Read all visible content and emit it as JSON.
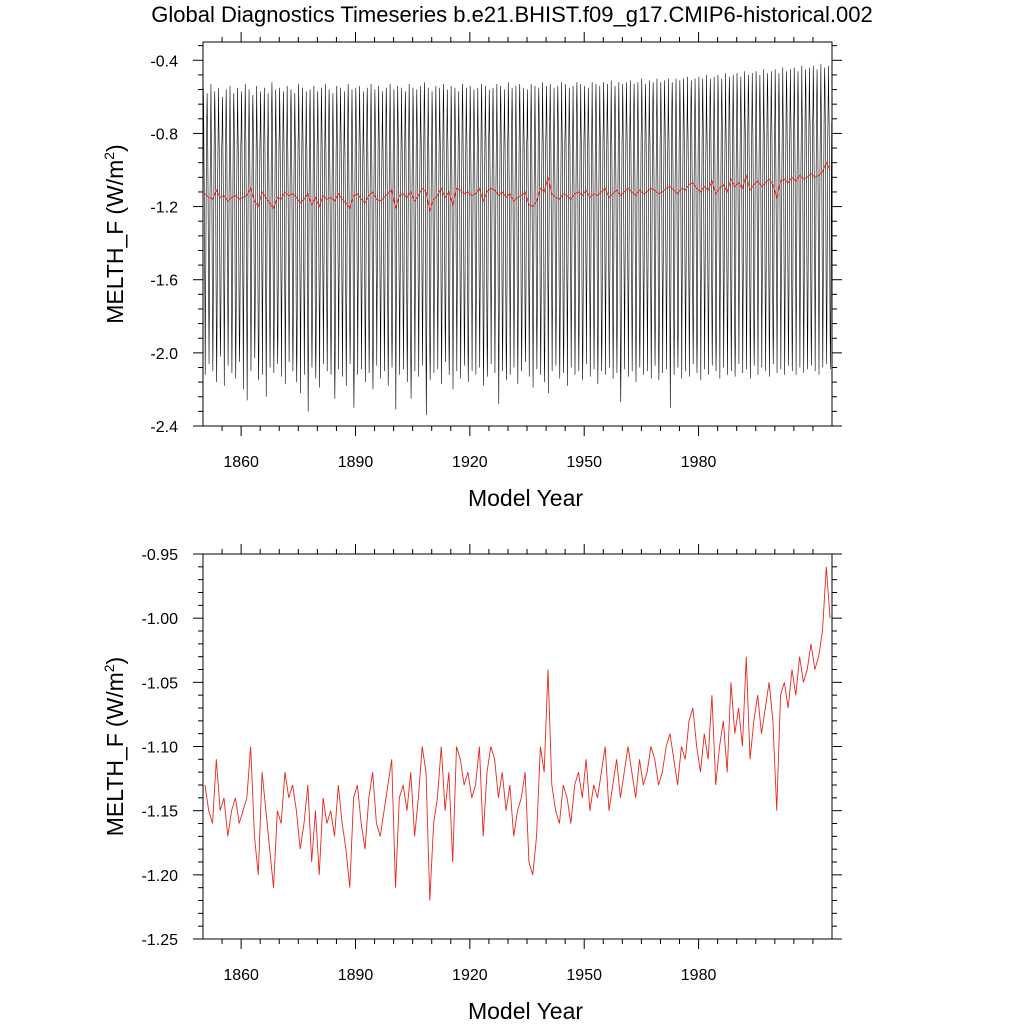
{
  "title": "Global Diagnostics Timeseries b.e21.BHIST.f09_g17.CMIP6-historical.002",
  "colors": {
    "monthly": "#000000",
    "annual": "#e8281e"
  },
  "chart_data": [
    {
      "type": "line",
      "name": "monthly-and-annual",
      "ylabel_main": "MELTH_F",
      "ylabel_units": "(W/m",
      "ylabel_sup": "2",
      "ylabel_close": ")",
      "xlabel": "Model Year",
      "xlim": [
        1850,
        2015
      ],
      "ylim": [
        -2.4,
        -0.3
      ],
      "xticks": [
        1860,
        1890,
        1920,
        1950,
        1980
      ],
      "yticks": [
        -0.4,
        -0.8,
        -1.2,
        -1.6,
        -2.0,
        -2.4
      ],
      "ytick_labels": [
        "-0.4",
        "-0.8",
        "-1.2",
        "-1.6",
        "-2.0",
        "-2.4"
      ],
      "series": [
        {
          "name": "monthly",
          "color": "#000000",
          "start_year": 1850,
          "years": 165,
          "summer_min": [
            -2.12,
            -2.06,
            -2.1,
            -2.16,
            -2.02,
            -2.18,
            -2.07,
            -2.11,
            -2.14,
            -2.05,
            -2.2,
            -2.26,
            -2.1,
            -2.03,
            -2.15,
            -2.12,
            -2.24,
            -2.08,
            -2.11,
            -2.06,
            -2.13,
            -2.17,
            -2.05,
            -2.1,
            -2.16,
            -2.22,
            -2.12,
            -2.32,
            -2.08,
            -2.14,
            -2.19,
            -2.06,
            -2.1,
            -2.12,
            -2.25,
            -2.09,
            -2.13,
            -2.18,
            -2.06,
            -2.3,
            -2.12,
            -2.09,
            -2.16,
            -2.11,
            -2.2,
            -2.07,
            -2.14,
            -2.1,
            -2.18,
            -2.08,
            -2.31,
            -2.12,
            -2.09,
            -2.16,
            -2.25,
            -2.1,
            -2.13,
            -2.07,
            -2.34,
            -2.15,
            -2.11,
            -2.09,
            -2.17,
            -2.05,
            -2.12,
            -2.2,
            -2.1,
            -2.14,
            -2.07,
            -2.16,
            -2.1,
            -2.12,
            -2.08,
            -2.18,
            -2.13,
            -2.06,
            -2.11,
            -2.28,
            -2.1,
            -2.15,
            -2.12,
            -2.08,
            -2.17,
            -2.1,
            -2.05,
            -2.13,
            -2.19,
            -2.09,
            -2.12,
            -2.16,
            -2.22,
            -2.1,
            -2.07,
            -2.14,
            -2.11,
            -2.18,
            -2.08,
            -2.12,
            -2.1,
            -2.15,
            -2.06,
            -2.13,
            -2.09,
            -2.17,
            -2.1,
            -2.12,
            -2.08,
            -2.14,
            -2.11,
            -2.27,
            -2.09,
            -2.13,
            -2.1,
            -2.16,
            -2.08,
            -2.12,
            -2.1,
            -2.14,
            -2.07,
            -2.15,
            -2.11,
            -2.09,
            -2.3,
            -2.12,
            -2.08,
            -2.14,
            -2.1,
            -2.13,
            -2.06,
            -2.11,
            -2.15,
            -2.09,
            -2.12,
            -2.07,
            -2.1,
            -2.14,
            -2.08,
            -2.12,
            -2.1,
            -2.13,
            -2.06,
            -2.11,
            -2.09,
            -2.14,
            -2.07,
            -2.12,
            -2.08,
            -2.1,
            -2.13,
            -2.06,
            -2.11,
            -2.09,
            -2.12,
            -2.07,
            -2.1,
            -2.12,
            -2.08,
            -2.11,
            -2.09,
            -2.07,
            -2.1,
            -2.12,
            -2.08,
            -2.06,
            -2.09
          ],
          "winter_max": [
            -0.55,
            -0.58,
            -0.53,
            -0.57,
            -0.55,
            -0.6,
            -0.56,
            -0.54,
            -0.58,
            -0.55,
            -0.57,
            -0.53,
            -0.56,
            -0.59,
            -0.54,
            -0.57,
            -0.55,
            -0.58,
            -0.52,
            -0.56,
            -0.55,
            -0.57,
            -0.54,
            -0.56,
            -0.58,
            -0.53,
            -0.55,
            -0.57,
            -0.56,
            -0.54,
            -0.57,
            -0.55,
            -0.53,
            -0.56,
            -0.58,
            -0.54,
            -0.55,
            -0.57,
            -0.53,
            -0.56,
            -0.55,
            -0.54,
            -0.57,
            -0.55,
            -0.53,
            -0.56,
            -0.54,
            -0.57,
            -0.55,
            -0.53,
            -0.56,
            -0.54,
            -0.55,
            -0.57,
            -0.53,
            -0.55,
            -0.56,
            -0.54,
            -0.52,
            -0.55,
            -0.57,
            -0.54,
            -0.55,
            -0.53,
            -0.56,
            -0.54,
            -0.55,
            -0.57,
            -0.53,
            -0.55,
            -0.54,
            -0.56,
            -0.55,
            -0.53,
            -0.54,
            -0.56,
            -0.55,
            -0.53,
            -0.54,
            -0.56,
            -0.52,
            -0.55,
            -0.54,
            -0.53,
            -0.55,
            -0.56,
            -0.53,
            -0.54,
            -0.55,
            -0.52,
            -0.54,
            -0.53,
            -0.55,
            -0.54,
            -0.52,
            -0.53,
            -0.55,
            -0.54,
            -0.52,
            -0.53,
            -0.54,
            -0.55,
            -0.52,
            -0.53,
            -0.54,
            -0.52,
            -0.53,
            -0.51,
            -0.54,
            -0.52,
            -0.53,
            -0.52,
            -0.51,
            -0.53,
            -0.52,
            -0.5,
            -0.53,
            -0.51,
            -0.52,
            -0.5,
            -0.52,
            -0.51,
            -0.5,
            -0.52,
            -0.5,
            -0.51,
            -0.5,
            -0.49,
            -0.51,
            -0.5,
            -0.49,
            -0.5,
            -0.48,
            -0.5,
            -0.49,
            -0.48,
            -0.5,
            -0.47,
            -0.49,
            -0.48,
            -0.47,
            -0.49,
            -0.46,
            -0.48,
            -0.47,
            -0.46,
            -0.48,
            -0.45,
            -0.47,
            -0.46,
            -0.45,
            -0.47,
            -0.44,
            -0.46,
            -0.45,
            -0.44,
            -0.46,
            -0.43,
            -0.45,
            -0.44,
            -0.43,
            -0.45,
            -0.42,
            -0.44,
            -0.43
          ]
        },
        {
          "name": "annual",
          "color": "#e8281e",
          "values": [
            -1.13,
            -1.15,
            -1.16,
            -1.11,
            -1.15,
            -1.14,
            -1.17,
            -1.15,
            -1.14,
            -1.16,
            -1.15,
            -1.14,
            -1.1,
            -1.17,
            -1.2,
            -1.12,
            -1.15,
            -1.18,
            -1.21,
            -1.15,
            -1.16,
            -1.12,
            -1.14,
            -1.13,
            -1.15,
            -1.18,
            -1.16,
            -1.13,
            -1.19,
            -1.15,
            -1.2,
            -1.14,
            -1.16,
            -1.15,
            -1.17,
            -1.13,
            -1.16,
            -1.18,
            -1.21,
            -1.14,
            -1.13,
            -1.16,
            -1.18,
            -1.14,
            -1.12,
            -1.16,
            -1.17,
            -1.15,
            -1.13,
            -1.11,
            -1.21,
            -1.14,
            -1.13,
            -1.15,
            -1.12,
            -1.17,
            -1.14,
            -1.1,
            -1.12,
            -1.22,
            -1.16,
            -1.14,
            -1.1,
            -1.15,
            -1.12,
            -1.19,
            -1.1,
            -1.11,
            -1.13,
            -1.12,
            -1.14,
            -1.13,
            -1.1,
            -1.17,
            -1.12,
            -1.1,
            -1.11,
            -1.14,
            -1.12,
            -1.15,
            -1.13,
            -1.17,
            -1.15,
            -1.14,
            -1.12,
            -1.19,
            -1.2,
            -1.17,
            -1.1,
            -1.12,
            -1.04,
            -1.13,
            -1.15,
            -1.16,
            -1.13,
            -1.14,
            -1.16,
            -1.13,
            -1.12,
            -1.14,
            -1.11,
            -1.15,
            -1.13,
            -1.14,
            -1.12,
            -1.1,
            -1.15,
            -1.13,
            -1.11,
            -1.14,
            -1.12,
            -1.1,
            -1.12,
            -1.14,
            -1.11,
            -1.13,
            -1.12,
            -1.1,
            -1.11,
            -1.13,
            -1.12,
            -1.1,
            -1.09,
            -1.11,
            -1.13,
            -1.1,
            -1.11,
            -1.08,
            -1.07,
            -1.1,
            -1.12,
            -1.09,
            -1.11,
            -1.06,
            -1.13,
            -1.1,
            -1.08,
            -1.12,
            -1.05,
            -1.09,
            -1.07,
            -1.1,
            -1.03,
            -1.11,
            -1.08,
            -1.06,
            -1.09,
            -1.07,
            -1.05,
            -1.08,
            -1.15,
            -1.06,
            -1.05,
            -1.07,
            -1.04,
            -1.06,
            -1.03,
            -1.05,
            -1.04,
            -1.02,
            -1.04,
            -1.03,
            -1.01,
            -0.96,
            -1.0
          ]
        }
      ]
    },
    {
      "type": "line",
      "name": "annual-only",
      "ylabel_main": "MELTH_F",
      "ylabel_units": "(W/m",
      "ylabel_sup": "2",
      "ylabel_close": ")",
      "xlabel": "Model Year",
      "xlim": [
        1850,
        2015
      ],
      "ylim": [
        -1.25,
        -0.95
      ],
      "xticks": [
        1860,
        1890,
        1920,
        1950,
        1980
      ],
      "yticks": [
        -0.95,
        -1.0,
        -1.05,
        -1.1,
        -1.15,
        -1.2,
        -1.25
      ],
      "ytick_labels": [
        "-0.95",
        "-1.00",
        "-1.05",
        "-1.10",
        "-1.15",
        "-1.20",
        "-1.25"
      ],
      "series": [
        {
          "name": "annual",
          "color": "#e8281e",
          "start_year": 1850,
          "values": [
            -1.13,
            -1.15,
            -1.16,
            -1.11,
            -1.15,
            -1.14,
            -1.17,
            -1.15,
            -1.14,
            -1.16,
            -1.15,
            -1.14,
            -1.1,
            -1.17,
            -1.2,
            -1.12,
            -1.15,
            -1.18,
            -1.21,
            -1.15,
            -1.16,
            -1.12,
            -1.14,
            -1.13,
            -1.15,
            -1.18,
            -1.16,
            -1.13,
            -1.19,
            -1.15,
            -1.2,
            -1.14,
            -1.16,
            -1.15,
            -1.17,
            -1.13,
            -1.16,
            -1.18,
            -1.21,
            -1.14,
            -1.13,
            -1.16,
            -1.18,
            -1.14,
            -1.12,
            -1.16,
            -1.17,
            -1.15,
            -1.13,
            -1.11,
            -1.21,
            -1.14,
            -1.13,
            -1.15,
            -1.12,
            -1.17,
            -1.14,
            -1.1,
            -1.12,
            -1.22,
            -1.16,
            -1.14,
            -1.1,
            -1.15,
            -1.12,
            -1.19,
            -1.1,
            -1.11,
            -1.13,
            -1.12,
            -1.14,
            -1.13,
            -1.1,
            -1.17,
            -1.12,
            -1.1,
            -1.11,
            -1.14,
            -1.12,
            -1.15,
            -1.13,
            -1.17,
            -1.15,
            -1.14,
            -1.12,
            -1.19,
            -1.2,
            -1.17,
            -1.1,
            -1.12,
            -1.04,
            -1.13,
            -1.15,
            -1.16,
            -1.13,
            -1.14,
            -1.16,
            -1.13,
            -1.12,
            -1.14,
            -1.11,
            -1.15,
            -1.13,
            -1.14,
            -1.12,
            -1.1,
            -1.15,
            -1.13,
            -1.11,
            -1.14,
            -1.12,
            -1.1,
            -1.12,
            -1.14,
            -1.11,
            -1.13,
            -1.12,
            -1.1,
            -1.11,
            -1.13,
            -1.12,
            -1.1,
            -1.09,
            -1.11,
            -1.13,
            -1.1,
            -1.11,
            -1.08,
            -1.07,
            -1.1,
            -1.12,
            -1.09,
            -1.11,
            -1.06,
            -1.13,
            -1.1,
            -1.08,
            -1.12,
            -1.05,
            -1.09,
            -1.07,
            -1.1,
            -1.03,
            -1.11,
            -1.08,
            -1.06,
            -1.09,
            -1.07,
            -1.05,
            -1.08,
            -1.15,
            -1.06,
            -1.05,
            -1.07,
            -1.04,
            -1.06,
            -1.03,
            -1.05,
            -1.04,
            -1.02,
            -1.04,
            -1.03,
            -1.01,
            -0.96,
            -1.0
          ]
        }
      ]
    }
  ]
}
